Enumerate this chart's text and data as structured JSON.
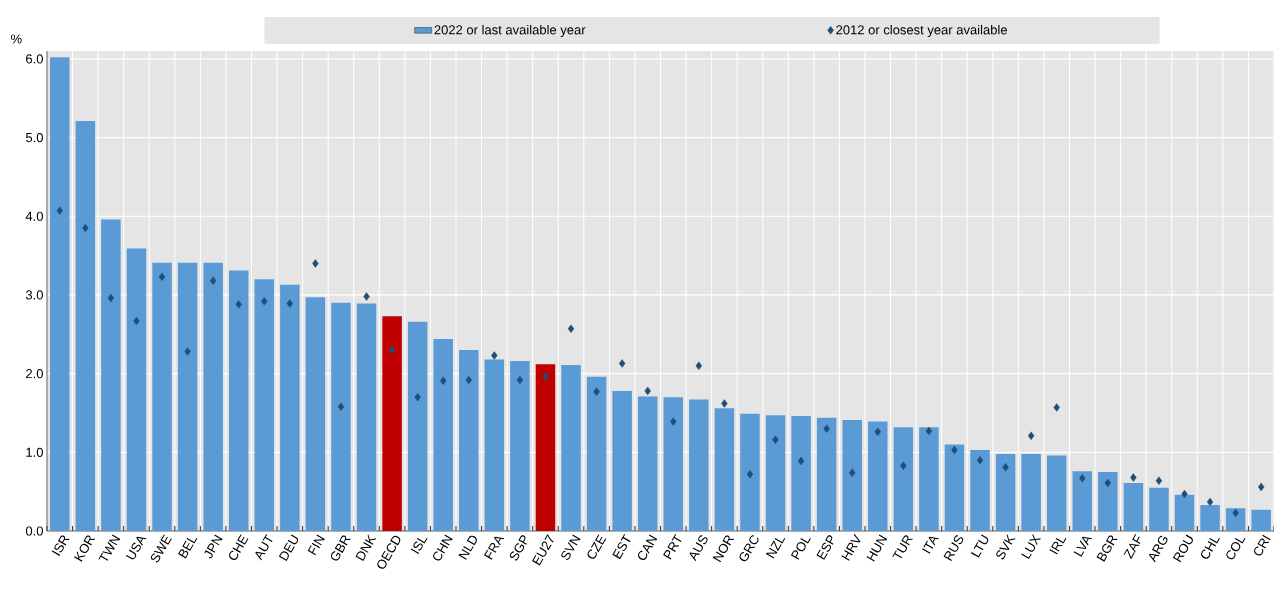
{
  "chart_data": {
    "type": "bar",
    "ylabel": "%",
    "categories": [
      "ISR",
      "KOR",
      "TWN",
      "USA",
      "SWE",
      "BEL",
      "JPN",
      "CHE",
      "AUT",
      "DEU",
      "FIN",
      "GBR",
      "DNK",
      "OECD",
      "ISL",
      "CHN",
      "NLD",
      "FRA",
      "SGP",
      "EU27",
      "SVN",
      "CZE",
      "EST",
      "CAN",
      "PRT",
      "AUS",
      "NOR",
      "GRC",
      "NZL",
      "POL",
      "ESP",
      "HRV",
      "HUN",
      "TUR",
      "ITA",
      "RUS",
      "LTU",
      "SVK",
      "LUX",
      "IRL",
      "LVA",
      "BGR",
      "ZAF",
      "ARG",
      "ROU",
      "CHL",
      "COL",
      "CRI"
    ],
    "series": [
      {
        "name": "2022 or last available year",
        "color": "#5b9bd5",
        "colors": [
          "#5b9bd5",
          "#5b9bd5",
          "#5b9bd5",
          "#5b9bd5",
          "#5b9bd5",
          "#5b9bd5",
          "#5b9bd5",
          "#5b9bd5",
          "#5b9bd5",
          "#5b9bd5",
          "#5b9bd5",
          "#5b9bd5",
          "#5b9bd5",
          "#c00000",
          "#5b9bd5",
          "#5b9bd5",
          "#5b9bd5",
          "#5b9bd5",
          "#5b9bd5",
          "#c00000",
          "#5b9bd5",
          "#5b9bd5",
          "#5b9bd5",
          "#5b9bd5",
          "#5b9bd5",
          "#5b9bd5",
          "#5b9bd5",
          "#5b9bd5",
          "#5b9bd5",
          "#5b9bd5",
          "#5b9bd5",
          "#5b9bd5",
          "#5b9bd5",
          "#5b9bd5",
          "#5b9bd5",
          "#5b9bd5",
          "#5b9bd5",
          "#5b9bd5",
          "#5b9bd5",
          "#5b9bd5",
          "#5b9bd5",
          "#5b9bd5",
          "#5b9bd5",
          "#5b9bd5",
          "#5b9bd5",
          "#5b9bd5",
          "#5b9bd5",
          "#5b9bd5"
        ],
        "values": [
          6.02,
          5.21,
          3.96,
          3.59,
          3.41,
          3.41,
          3.41,
          3.31,
          3.2,
          3.13,
          2.97,
          2.9,
          2.89,
          2.73,
          2.66,
          2.44,
          2.3,
          2.18,
          2.16,
          2.12,
          2.11,
          1.96,
          1.78,
          1.71,
          1.7,
          1.67,
          1.56,
          1.49,
          1.47,
          1.46,
          1.44,
          1.41,
          1.39,
          1.32,
          1.32,
          1.1,
          1.03,
          0.98,
          0.98,
          0.96,
          0.76,
          0.75,
          0.61,
          0.55,
          0.46,
          0.33,
          0.29,
          0.27
        ]
      },
      {
        "name": "2012 or closest year available",
        "type": "scatter",
        "color": "#1f4e79",
        "marker": "diamond",
        "values": [
          4.07,
          3.85,
          2.96,
          2.67,
          3.23,
          2.28,
          3.18,
          2.88,
          2.92,
          2.89,
          3.4,
          1.58,
          2.98,
          2.3,
          1.7,
          1.91,
          1.92,
          2.23,
          1.92,
          1.96,
          2.57,
          1.77,
          2.13,
          1.78,
          1.39,
          2.1,
          1.62,
          0.72,
          1.16,
          0.89,
          1.3,
          0.74,
          1.26,
          0.83,
          1.27,
          1.03,
          0.9,
          0.81,
          1.21,
          1.57,
          0.67,
          0.61,
          0.68,
          0.64,
          0.47,
          0.37,
          0.23,
          0.56
        ]
      }
    ],
    "ylim": [
      0,
      6.1
    ],
    "yticks": [
      {
        "value": 0,
        "label": "0.0"
      },
      {
        "value": 1,
        "label": "1.0"
      },
      {
        "value": 2,
        "label": "2.0"
      },
      {
        "value": 3,
        "label": "3.0"
      },
      {
        "value": 4,
        "label": "4.0"
      },
      {
        "value": 5,
        "label": "5.0"
      },
      {
        "value": 6,
        "label": "6.0"
      }
    ],
    "grid": true,
    "legend": "top"
  }
}
